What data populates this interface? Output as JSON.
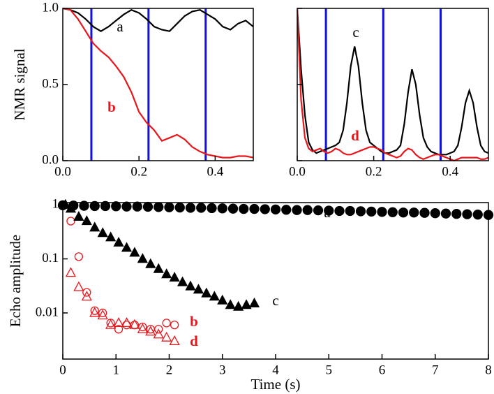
{
  "chart_data": [
    {
      "type": "line",
      "ylabel": "NMR signal",
      "x": [
        0,
        0.02,
        0.04,
        0.06,
        0.08,
        0.1,
        0.12,
        0.14,
        0.16,
        0.18,
        0.2,
        0.22,
        0.24,
        0.26,
        0.28,
        0.3,
        0.32,
        0.34,
        0.36,
        0.38,
        0.4,
        0.42,
        0.44,
        0.46,
        0.48,
        0.5
      ],
      "series": [
        {
          "name": "a",
          "color": "#000000",
          "values": [
            1.0,
            0.99,
            0.97,
            0.93,
            0.88,
            0.85,
            0.88,
            0.92,
            0.96,
            0.99,
            0.97,
            0.93,
            0.88,
            0.86,
            0.85,
            0.9,
            0.95,
            0.98,
            0.99,
            0.96,
            0.93,
            0.88,
            0.86,
            0.9,
            0.92,
            0.88
          ]
        },
        {
          "name": "b",
          "color": "#e8161b",
          "values": [
            1.0,
            0.99,
            0.93,
            0.85,
            0.77,
            0.72,
            0.68,
            0.62,
            0.55,
            0.45,
            0.32,
            0.25,
            0.2,
            0.13,
            0.15,
            0.17,
            0.14,
            0.09,
            0.06,
            0.04,
            0.03,
            0.02,
            0.02,
            0.03,
            0.03,
            0.02
          ]
        }
      ],
      "vlines": [
        0.075,
        0.225,
        0.375
      ],
      "vline_color": "#1010e0",
      "xlim": [
        0,
        0.5
      ],
      "xticks": [
        {
          "value": 0,
          "label": "0.0"
        },
        0.2,
        0.4
      ],
      "ylim": [
        0,
        1
      ],
      "yticks": [
        {
          "value": 0,
          "label": "0.0"
        },
        0.5,
        {
          "value": 1,
          "label": "1.0"
        }
      ],
      "ytick_labels": true
    },
    {
      "type": "line",
      "x": [
        0,
        0.01,
        0.02,
        0.03,
        0.04,
        0.05,
        0.06,
        0.07,
        0.08,
        0.09,
        0.1,
        0.11,
        0.12,
        0.13,
        0.14,
        0.15,
        0.16,
        0.17,
        0.18,
        0.19,
        0.2,
        0.21,
        0.22,
        0.23,
        0.24,
        0.25,
        0.26,
        0.27,
        0.28,
        0.29,
        0.3,
        0.31,
        0.32,
        0.33,
        0.34,
        0.35,
        0.36,
        0.37,
        0.38,
        0.39,
        0.4,
        0.41,
        0.42,
        0.43,
        0.44,
        0.45,
        0.46,
        0.47,
        0.48,
        0.49,
        0.5
      ],
      "series": [
        {
          "name": "c",
          "color": "#000000",
          "values": [
            1.0,
            0.6,
            0.3,
            0.12,
            0.07,
            0.05,
            0.06,
            0.07,
            0.08,
            0.09,
            0.1,
            0.12,
            0.2,
            0.38,
            0.62,
            0.75,
            0.62,
            0.38,
            0.2,
            0.12,
            0.1,
            0.08,
            0.06,
            0.05,
            0.05,
            0.06,
            0.07,
            0.1,
            0.24,
            0.45,
            0.6,
            0.5,
            0.3,
            0.15,
            0.09,
            0.06,
            0.05,
            0.04,
            0.04,
            0.04,
            0.05,
            0.06,
            0.1,
            0.22,
            0.38,
            0.46,
            0.38,
            0.22,
            0.1,
            0.06,
            0.05
          ]
        },
        {
          "name": "d",
          "color": "#e8161b",
          "values": [
            1.0,
            0.4,
            0.15,
            0.08,
            0.06,
            0.07,
            0.08,
            0.06,
            0.05,
            0.06,
            0.08,
            0.07,
            0.05,
            0.04,
            0.04,
            0.05,
            0.06,
            0.07,
            0.08,
            0.09,
            0.09,
            0.08,
            0.07,
            0.05,
            0.04,
            0.03,
            0.02,
            0.03,
            0.06,
            0.08,
            0.07,
            0.04,
            0.02,
            0.01,
            0.02,
            0.03,
            0.04,
            0.04,
            0.03,
            0.02,
            0.01,
            0.0,
            0.01,
            0.02,
            0.02,
            0.02,
            0.02,
            0.02,
            0.01,
            0.01,
            0.02
          ]
        }
      ],
      "vlines": [
        0.075,
        0.225,
        0.375
      ],
      "vline_color": "#1010e0",
      "xlim": [
        0,
        0.5
      ],
      "xticks": [
        {
          "value": 0,
          "label": "0.0"
        },
        0.2,
        0.4
      ],
      "ylim": [
        0,
        1
      ],
      "yticks": [
        0,
        0.5,
        1
      ],
      "ytick_labels": false
    },
    {
      "type": "scatter",
      "xlabel": "Time (s)",
      "ylabel": "Echo amplitude",
      "log_y": true,
      "series": [
        {
          "name": "a",
          "color": "#000000",
          "marker": "circle",
          "filled": true,
          "x": [
            0,
            0.2,
            0.4,
            0.6,
            0.8,
            1,
            1.2,
            1.4,
            1.6,
            1.8,
            2,
            2.2,
            2.4,
            2.6,
            2.8,
            3,
            3.2,
            3.4,
            3.6,
            3.8,
            4,
            4.2,
            4.4,
            4.6,
            4.8,
            5,
            5.2,
            5.4,
            5.6,
            5.8,
            6,
            6.2,
            6.4,
            6.6,
            6.8,
            7,
            7.2,
            7.4,
            7.6,
            7.8,
            8
          ],
          "values": [
            0.98,
            0.97,
            0.96,
            0.95,
            0.95,
            0.94,
            0.93,
            0.93,
            0.92,
            0.91,
            0.9,
            0.89,
            0.88,
            0.88,
            0.87,
            0.86,
            0.85,
            0.84,
            0.84,
            0.83,
            0.82,
            0.81,
            0.8,
            0.8,
            0.79,
            0.78,
            0.77,
            0.77,
            0.76,
            0.75,
            0.74,
            0.73,
            0.72,
            0.72,
            0.71,
            0.7,
            0.69,
            0.68,
            0.67,
            0.66,
            0.65
          ]
        },
        {
          "name": "b",
          "color": "#e8161b",
          "marker": "circle",
          "filled": false,
          "x": [
            0.15,
            0.3,
            0.45,
            0.6,
            0.75,
            0.9,
            1.05,
            1.2,
            1.35,
            1.5,
            1.65,
            1.8,
            1.95,
            2.1
          ],
          "values": [
            0.5,
            0.11,
            0.024,
            0.011,
            0.01,
            0.0065,
            0.005,
            0.006,
            0.006,
            0.0055,
            0.005,
            0.005,
            0.0065,
            0.006
          ]
        },
        {
          "name": "c",
          "color": "#000000",
          "marker": "triangle",
          "filled": true,
          "x": [
            0.05,
            0.15,
            0.3,
            0.45,
            0.6,
            0.75,
            0.9,
            1.05,
            1.2,
            1.35,
            1.5,
            1.65,
            1.8,
            1.95,
            2.1,
            2.25,
            2.4,
            2.55,
            2.7,
            2.85,
            3.0,
            3.15,
            3.3,
            3.45,
            3.6
          ],
          "values": [
            1.0,
            0.85,
            0.6,
            0.5,
            0.38,
            0.3,
            0.25,
            0.2,
            0.16,
            0.13,
            0.1,
            0.08,
            0.065,
            0.052,
            0.045,
            0.037,
            0.031,
            0.027,
            0.023,
            0.02,
            0.017,
            0.014,
            0.013,
            0.014,
            0.015
          ]
        },
        {
          "name": "d",
          "color": "#e8161b",
          "marker": "triangle",
          "filled": false,
          "x": [
            0.15,
            0.3,
            0.45,
            0.6,
            0.75,
            0.9,
            1.05,
            1.2,
            1.35,
            1.5,
            1.65,
            1.8,
            1.95,
            2.1
          ],
          "values": [
            0.055,
            0.03,
            0.02,
            0.01,
            0.009,
            0.006,
            0.0065,
            0.0065,
            0.006,
            0.005,
            0.0045,
            0.004,
            0.0035,
            0.003
          ]
        }
      ],
      "xlim": [
        0,
        8
      ],
      "xticks": [
        0,
        1,
        2,
        3,
        4,
        5,
        6,
        7,
        8
      ],
      "ylim": [
        0.0014,
        1.1
      ],
      "yticks": [
        1,
        0.1,
        0.01
      ],
      "ytick_labels": true
    }
  ]
}
